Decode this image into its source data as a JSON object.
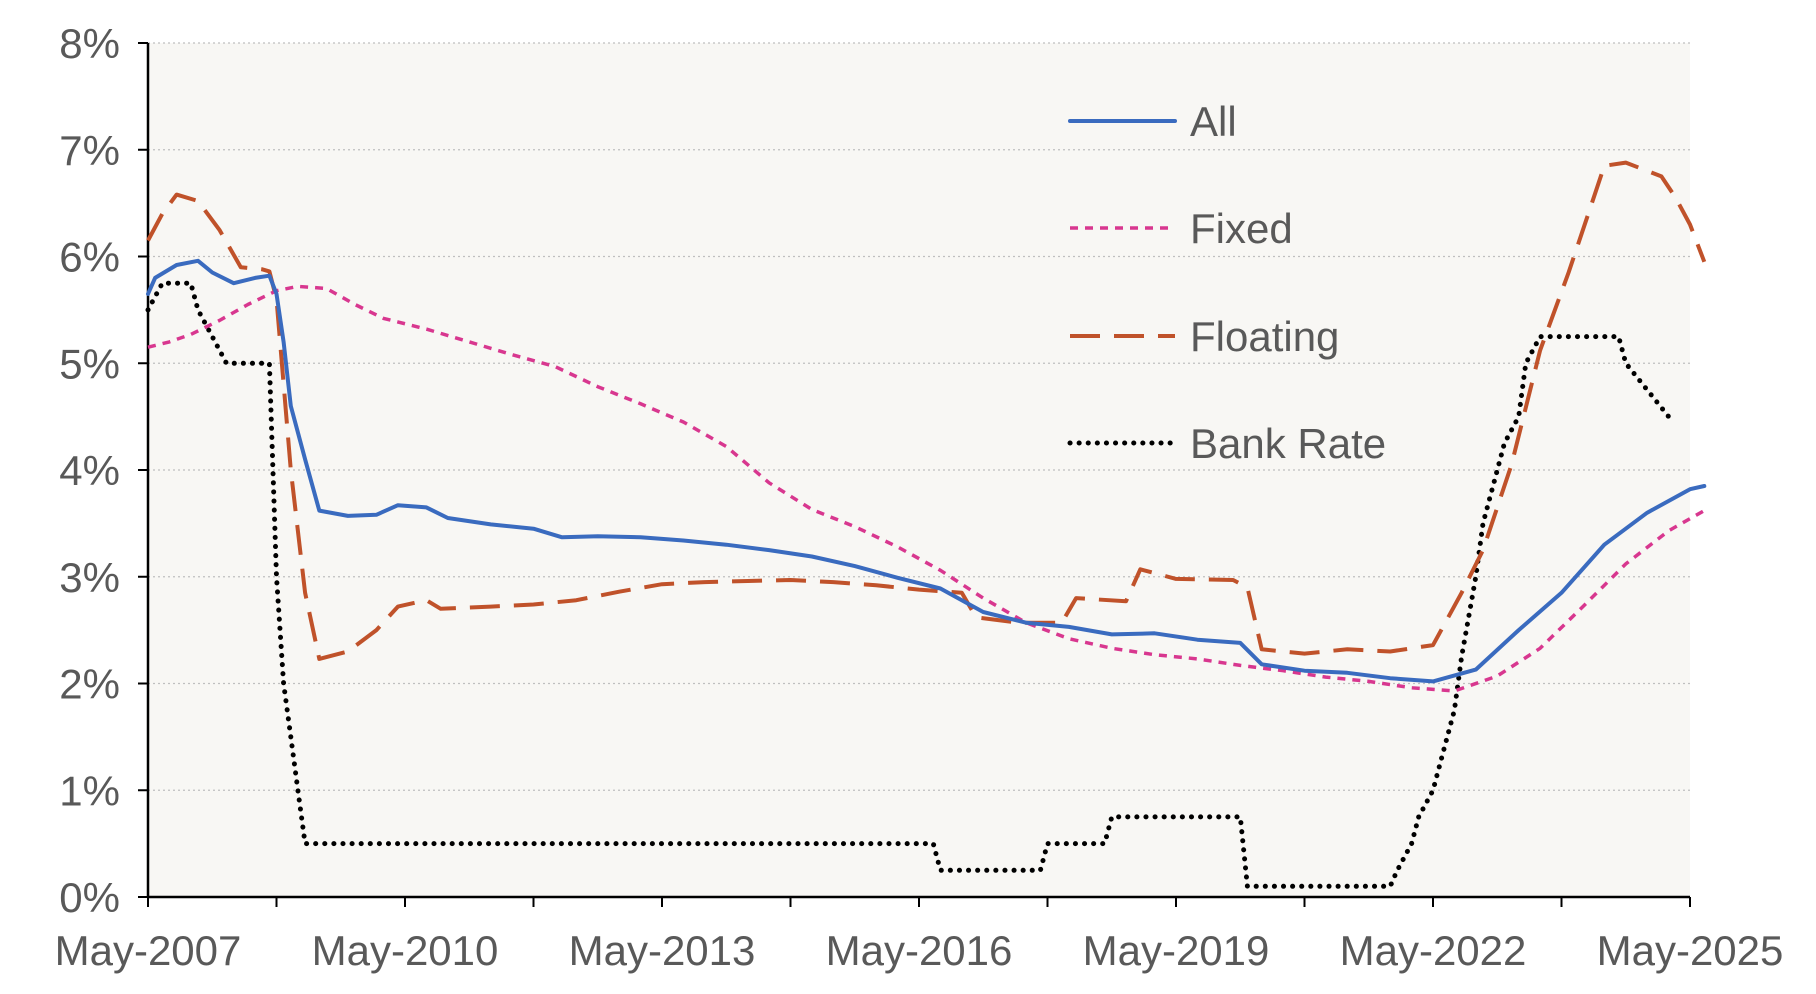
{
  "chart_data": {
    "type": "line",
    "title": "",
    "xlabel": "",
    "ylabel": "",
    "x_range": [
      "May-2007",
      "May-2025"
    ],
    "x_ticks": [
      "May-2007",
      "May-2010",
      "May-2013",
      "May-2016",
      "May-2019",
      "May-2022",
      "May-2025"
    ],
    "y_ticks": [
      "0%",
      "1%",
      "2%",
      "3%",
      "4%",
      "5%",
      "6%",
      "7%",
      "8%"
    ],
    "ylim": [
      0,
      8
    ],
    "grid": true,
    "legend_position": "top-right",
    "colors": {
      "plot_background": "#f8f7f4",
      "gridline": "#bfbfbf",
      "axis": "#000000",
      "text": "#595959"
    },
    "series": [
      {
        "name": "All",
        "color": "#3a6bbf",
        "style": "solid",
        "points": [
          [
            "2007-05",
            5.65
          ],
          [
            "2007-06",
            5.8
          ],
          [
            "2007-09",
            5.92
          ],
          [
            "2007-12",
            5.96
          ],
          [
            "2008-02",
            5.85
          ],
          [
            "2008-05",
            5.75
          ],
          [
            "2008-08",
            5.8
          ],
          [
            "2008-10",
            5.82
          ],
          [
            "2008-11",
            5.65
          ],
          [
            "2008-12",
            5.2
          ],
          [
            "2009-01",
            4.6
          ],
          [
            "2009-03",
            4.1
          ],
          [
            "2009-05",
            3.62
          ],
          [
            "2009-09",
            3.57
          ],
          [
            "2010-01",
            3.58
          ],
          [
            "2010-04",
            3.67
          ],
          [
            "2010-08",
            3.65
          ],
          [
            "2010-11",
            3.55
          ],
          [
            "2011-05",
            3.49
          ],
          [
            "2011-11",
            3.45
          ],
          [
            "2012-03",
            3.37
          ],
          [
            "2012-08",
            3.38
          ],
          [
            "2013-02",
            3.37
          ],
          [
            "2013-08",
            3.34
          ],
          [
            "2014-02",
            3.3
          ],
          [
            "2014-08",
            3.25
          ],
          [
            "2015-02",
            3.19
          ],
          [
            "2015-08",
            3.1
          ],
          [
            "2016-02",
            2.99
          ],
          [
            "2016-08",
            2.89
          ],
          [
            "2017-02",
            2.67
          ],
          [
            "2017-08",
            2.57
          ],
          [
            "2018-02",
            2.53
          ],
          [
            "2018-08",
            2.46
          ],
          [
            "2019-02",
            2.47
          ],
          [
            "2019-08",
            2.41
          ],
          [
            "2020-02",
            2.38
          ],
          [
            "2020-05",
            2.18
          ],
          [
            "2020-11",
            2.12
          ],
          [
            "2021-05",
            2.1
          ],
          [
            "2021-11",
            2.05
          ],
          [
            "2022-05",
            2.02
          ],
          [
            "2022-11",
            2.13
          ],
          [
            "2023-05",
            2.5
          ],
          [
            "2023-11",
            2.85
          ],
          [
            "2024-05",
            3.3
          ],
          [
            "2024-11",
            3.6
          ],
          [
            "2025-05",
            3.82
          ],
          [
            "2025-07",
            3.85
          ]
        ]
      },
      {
        "name": "Fixed",
        "color": "#d8378f",
        "style": "short-dash",
        "points": [
          [
            "2007-05",
            5.15
          ],
          [
            "2007-08",
            5.2
          ],
          [
            "2007-11",
            5.27
          ],
          [
            "2008-03",
            5.4
          ],
          [
            "2008-07",
            5.55
          ],
          [
            "2008-11",
            5.68
          ],
          [
            "2009-02",
            5.72
          ],
          [
            "2009-06",
            5.7
          ],
          [
            "2009-10",
            5.55
          ],
          [
            "2010-02",
            5.42
          ],
          [
            "2010-08",
            5.32
          ],
          [
            "2011-02",
            5.2
          ],
          [
            "2011-08",
            5.08
          ],
          [
            "2012-02",
            4.97
          ],
          [
            "2012-08",
            4.78
          ],
          [
            "2013-02",
            4.62
          ],
          [
            "2013-08",
            4.45
          ],
          [
            "2014-02",
            4.22
          ],
          [
            "2014-08",
            3.88
          ],
          [
            "2015-02",
            3.63
          ],
          [
            "2015-08",
            3.47
          ],
          [
            "2016-02",
            3.28
          ],
          [
            "2016-08",
            3.06
          ],
          [
            "2017-02",
            2.8
          ],
          [
            "2017-08",
            2.57
          ],
          [
            "2018-02",
            2.42
          ],
          [
            "2018-08",
            2.33
          ],
          [
            "2019-02",
            2.27
          ],
          [
            "2019-08",
            2.23
          ],
          [
            "2020-02",
            2.17
          ],
          [
            "2020-08",
            2.12
          ],
          [
            "2021-02",
            2.06
          ],
          [
            "2021-08",
            2.02
          ],
          [
            "2022-02",
            1.96
          ],
          [
            "2022-08",
            1.93
          ],
          [
            "2023-02",
            2.07
          ],
          [
            "2023-08",
            2.33
          ],
          [
            "2024-02",
            2.72
          ],
          [
            "2024-08",
            3.12
          ],
          [
            "2025-02",
            3.43
          ],
          [
            "2025-07",
            3.62
          ]
        ]
      },
      {
        "name": "Floating",
        "color": "#c0522a",
        "style": "long-dash",
        "points": [
          [
            "2007-05",
            6.15
          ],
          [
            "2007-07",
            6.4
          ],
          [
            "2007-09",
            6.58
          ],
          [
            "2007-12",
            6.52
          ],
          [
            "2008-03",
            6.25
          ],
          [
            "2008-06",
            5.9
          ],
          [
            "2008-09",
            5.88
          ],
          [
            "2008-10",
            5.86
          ],
          [
            "2008-11",
            5.6
          ],
          [
            "2009-01",
            4.0
          ],
          [
            "2009-03",
            2.85
          ],
          [
            "2009-05",
            2.23
          ],
          [
            "2009-09",
            2.3
          ],
          [
            "2010-01",
            2.5
          ],
          [
            "2010-04",
            2.72
          ],
          [
            "2010-08",
            2.78
          ],
          [
            "2010-10",
            2.7
          ],
          [
            "2011-05",
            2.72
          ],
          [
            "2011-11",
            2.74
          ],
          [
            "2012-05",
            2.78
          ],
          [
            "2012-11",
            2.86
          ],
          [
            "2013-05",
            2.93
          ],
          [
            "2013-11",
            2.95
          ],
          [
            "2014-05",
            2.96
          ],
          [
            "2014-11",
            2.97
          ],
          [
            "2015-05",
            2.95
          ],
          [
            "2015-11",
            2.92
          ],
          [
            "2016-05",
            2.88
          ],
          [
            "2016-11",
            2.85
          ],
          [
            "2017-01",
            2.62
          ],
          [
            "2017-07",
            2.57
          ],
          [
            "2018-01",
            2.57
          ],
          [
            "2018-03",
            2.8
          ],
          [
            "2018-10",
            2.77
          ],
          [
            "2018-12",
            3.07
          ],
          [
            "2019-05",
            2.98
          ],
          [
            "2020-01",
            2.97
          ],
          [
            "2020-03",
            2.9
          ],
          [
            "2020-05",
            2.32
          ],
          [
            "2020-11",
            2.28
          ],
          [
            "2021-05",
            2.32
          ],
          [
            "2021-11",
            2.3
          ],
          [
            "2022-05",
            2.36
          ],
          [
            "2022-09",
            2.85
          ],
          [
            "2022-12",
            3.25
          ],
          [
            "2023-04",
            4.05
          ],
          [
            "2023-08",
            5.12
          ],
          [
            "2023-12",
            5.85
          ],
          [
            "2024-03",
            6.45
          ],
          [
            "2024-05",
            6.85
          ],
          [
            "2024-08",
            6.88
          ],
          [
            "2025-01",
            6.75
          ],
          [
            "2025-03",
            6.55
          ],
          [
            "2025-05",
            6.3
          ],
          [
            "2025-07",
            5.95
          ]
        ]
      },
      {
        "name": "Bank Rate",
        "color": "#000000",
        "style": "dotted",
        "points": [
          [
            "2007-05",
            5.5
          ],
          [
            "2007-07",
            5.75
          ],
          [
            "2007-11",
            5.75
          ],
          [
            "2007-12",
            5.5
          ],
          [
            "2008-02",
            5.25
          ],
          [
            "2008-04",
            5.0
          ],
          [
            "2008-10",
            5.0
          ],
          [
            "2008-11",
            3.0
          ],
          [
            "2008-12",
            2.0
          ],
          [
            "2009-01",
            1.5
          ],
          [
            "2009-02",
            1.0
          ],
          [
            "2009-03",
            0.5
          ],
          [
            "2016-07",
            0.5
          ],
          [
            "2016-08",
            0.25
          ],
          [
            "2017-10",
            0.25
          ],
          [
            "2017-11",
            0.5
          ],
          [
            "2018-07",
            0.5
          ],
          [
            "2018-08",
            0.75
          ],
          [
            "2020-02",
            0.75
          ],
          [
            "2020-03",
            0.1
          ],
          [
            "2021-11",
            0.1
          ],
          [
            "2021-12",
            0.25
          ],
          [
            "2022-02",
            0.5
          ],
          [
            "2022-03",
            0.75
          ],
          [
            "2022-05",
            1.0
          ],
          [
            "2022-06",
            1.25
          ],
          [
            "2022-08",
            1.75
          ],
          [
            "2022-09",
            2.25
          ],
          [
            "2022-11",
            3.0
          ],
          [
            "2022-12",
            3.5
          ],
          [
            "2023-02",
            4.0
          ],
          [
            "2023-03",
            4.25
          ],
          [
            "2023-05",
            4.5
          ],
          [
            "2023-06",
            5.0
          ],
          [
            "2023-08",
            5.25
          ],
          [
            "2024-07",
            5.25
          ],
          [
            "2024-08",
            5.0
          ],
          [
            "2024-11",
            4.75
          ],
          [
            "2025-02",
            4.5
          ]
        ]
      }
    ]
  }
}
